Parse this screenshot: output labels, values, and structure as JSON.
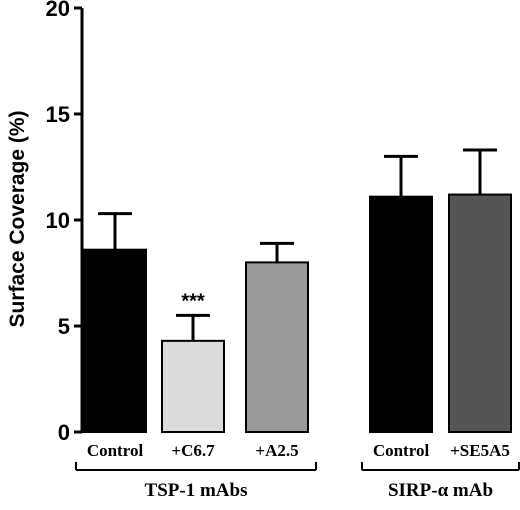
{
  "chart_data": {
    "type": "bar",
    "ylabel": "Surface Coverage (%)",
    "ylim": [
      0,
      20
    ],
    "yticks": [
      "0",
      "5",
      "10",
      "15",
      "20"
    ],
    "categories": [
      "Control",
      "+C6.7",
      "+A2.5",
      "Control",
      "+SE5A5"
    ],
    "values": [
      8.6,
      4.3,
      8.0,
      11.1,
      11.2
    ],
    "errors": [
      1.7,
      1.2,
      0.9,
      1.9,
      2.1
    ],
    "bar_colors": [
      "#000000",
      "#dcdcdc",
      "#9a9a9a",
      "#000000",
      "#555555"
    ],
    "groups": [
      {
        "label": "TSP-1 mAbs",
        "categories": [
          0,
          1,
          2
        ]
      },
      {
        "label": "SIRP-α mAb",
        "categories": [
          3,
          4
        ]
      }
    ],
    "annotations": [
      {
        "text": "***",
        "category": 1
      }
    ],
    "grid": false,
    "legend": "none"
  }
}
